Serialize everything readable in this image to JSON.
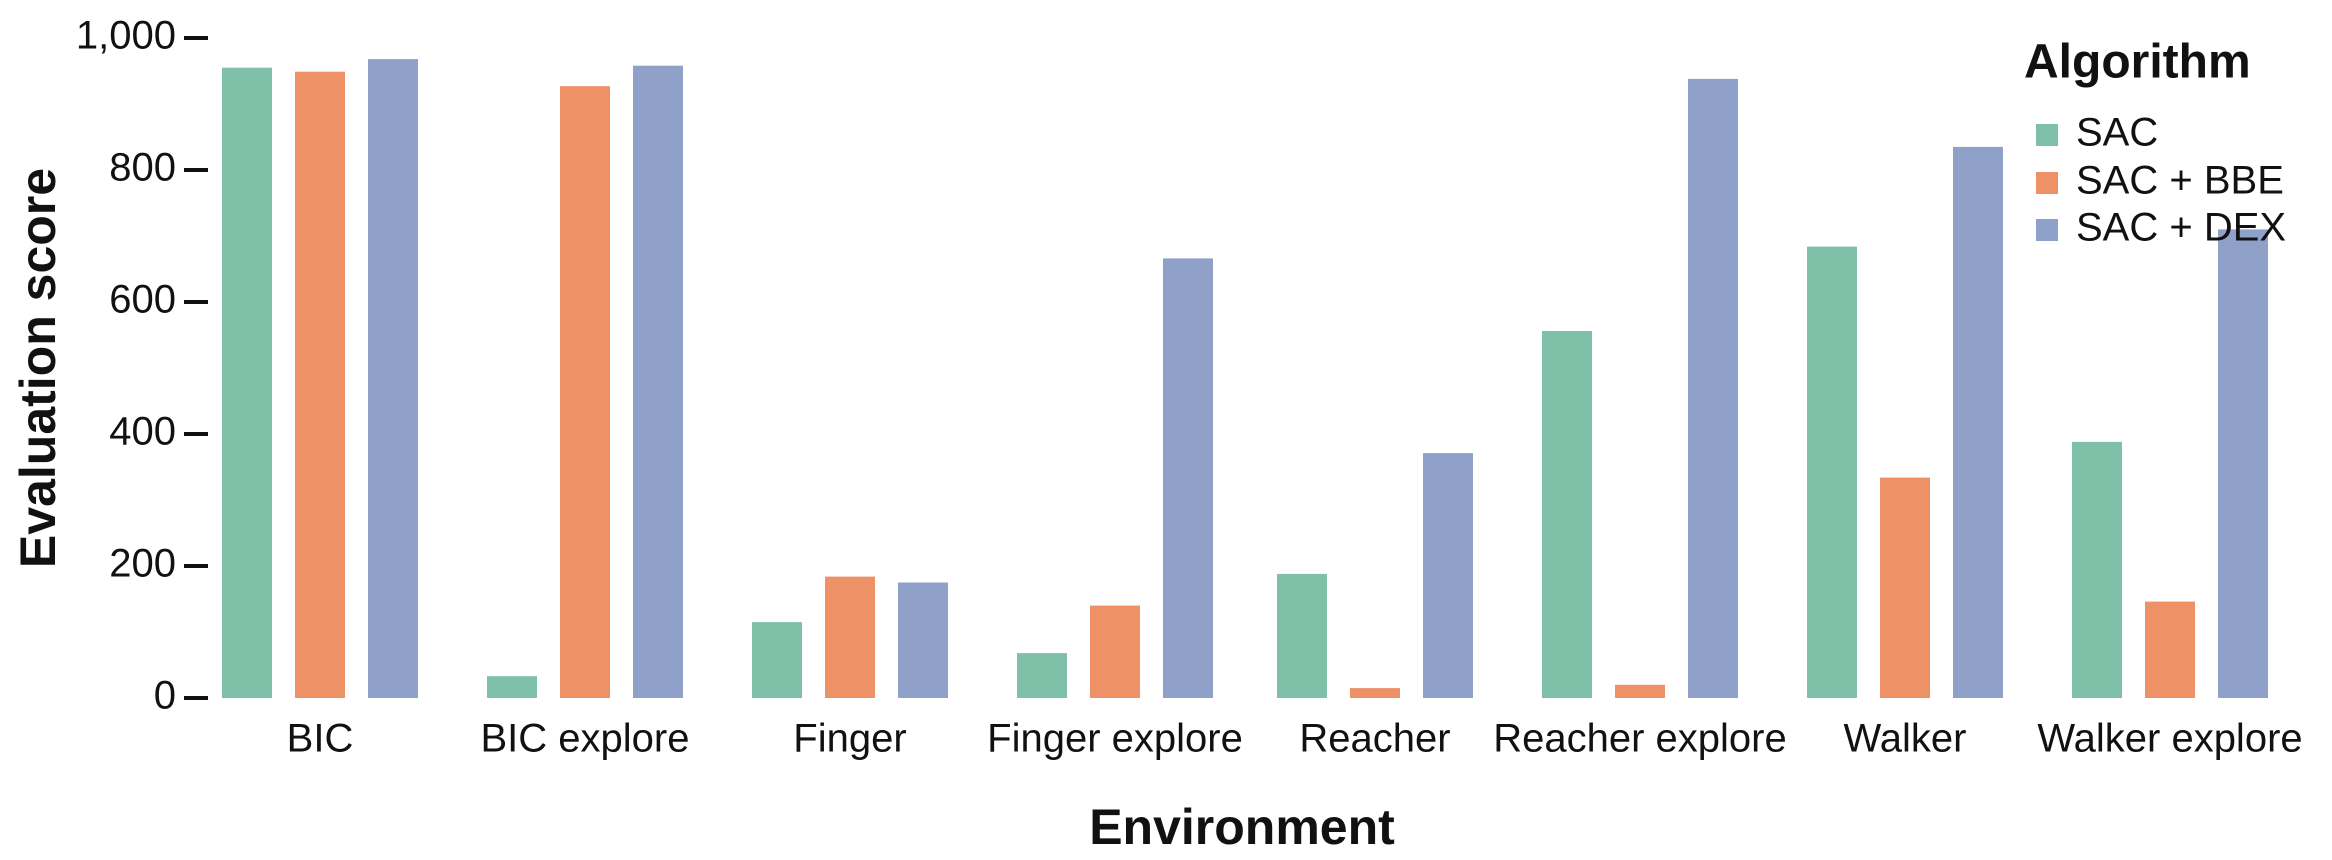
{
  "chart_data": {
    "type": "bar",
    "title": "",
    "xlabel": "Environment",
    "ylabel": "Evaluation score",
    "ylim": [
      0,
      1000
    ],
    "yticks": [
      0,
      200,
      400,
      600,
      800,
      1000
    ],
    "ytick_labels": [
      "0",
      "200",
      "400",
      "600",
      "800",
      "1,000"
    ],
    "grid": false,
    "legend_title": "Algorithm",
    "legend_position": "top-right",
    "categories": [
      "BIC",
      "BIC explore",
      "Finger",
      "Finger explore",
      "Reacher",
      "Reacher explore",
      "Walker",
      "Walker explore"
    ],
    "series": [
      {
        "name": "SAC",
        "color": "#7fc1a8",
        "values": [
          955,
          33,
          115,
          68,
          188,
          556,
          684,
          388
        ]
      },
      {
        "name": "SAC + BBE",
        "color": "#ee9167",
        "values": [
          949,
          927,
          184,
          140,
          15,
          20,
          334,
          146
        ]
      },
      {
        "name": "SAC + DEX",
        "color": "#90a1c9",
        "values": [
          968,
          958,
          175,
          666,
          371,
          938,
          835,
          710
        ]
      }
    ]
  }
}
